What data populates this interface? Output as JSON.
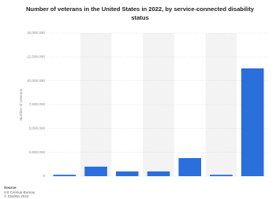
{
  "chart_data": {
    "type": "bar",
    "title": "Number of veterans in the United States in 2022, by service-connected disability status",
    "y_label": "Number of veterans",
    "categories": [
      null,
      null,
      null,
      null,
      null,
      null,
      null
    ],
    "values": [
      150000,
      1000000,
      500000,
      500000,
      1900000,
      150000,
      11300000
    ],
    "color": "#2a6fdb",
    "ylim": [
      0,
      15000000
    ],
    "yticks": [
      0,
      {
        "value": 2500000,
        "label": "2,500,000"
      },
      {
        "value": 5000000,
        "label": "5,000,000"
      },
      {
        "value": 7500000,
        "label": "7,500,000"
      },
      {
        "value": 10000000,
        "label": "10,000,000"
      },
      {
        "value": 12500000,
        "label": "12,500,000"
      },
      {
        "value": 15000000,
        "label": "15,000,000"
      }
    ],
    "grid": true
  },
  "source": {
    "heading": "Source",
    "lines": [
      "US Census Bureau",
      "© Statista 2024"
    ]
  }
}
